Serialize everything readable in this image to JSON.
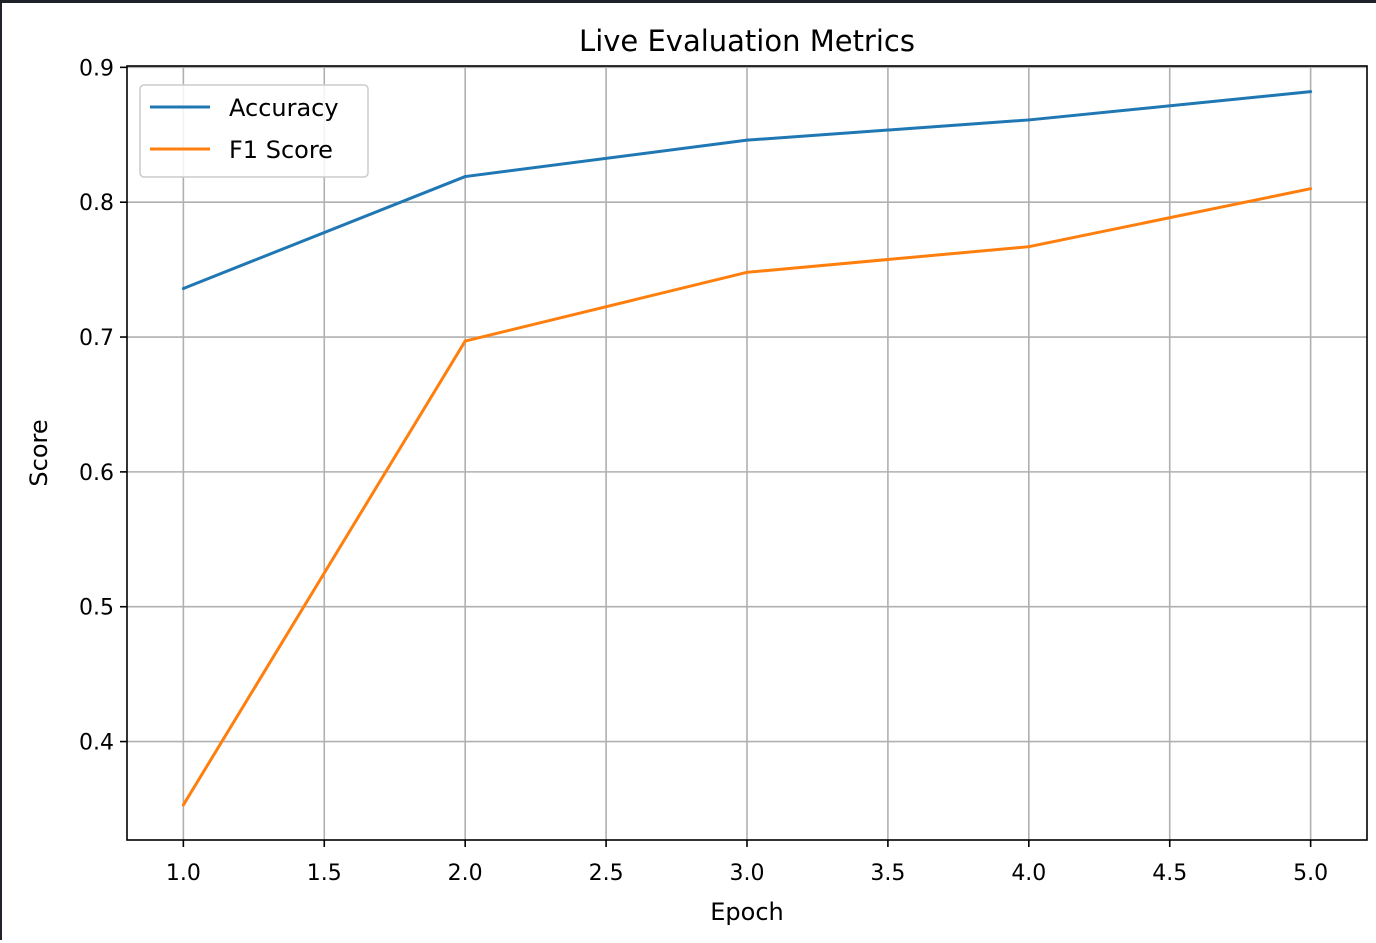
{
  "chart_data": {
    "type": "line",
    "title": "Live Evaluation Metrics",
    "xlabel": "Epoch",
    "ylabel": "Score",
    "x": [
      1,
      2,
      3,
      4,
      5
    ],
    "series": [
      {
        "name": "Accuracy",
        "color": "#1f77b4",
        "values": [
          0.736,
          0.819,
          0.846,
          0.861,
          0.882
        ]
      },
      {
        "name": "F1 Score",
        "color": "#ff7f0e",
        "values": [
          0.353,
          0.697,
          0.748,
          0.767,
          0.81
        ]
      }
    ],
    "xlim": [
      0.8,
      5.2
    ],
    "ylim": [
      0.327,
      0.901
    ],
    "xticks": [
      1.0,
      1.5,
      2.0,
      2.5,
      3.0,
      3.5,
      4.0,
      4.5,
      5.0
    ],
    "xtick_labels": [
      "1.0",
      "1.5",
      "2.0",
      "2.5",
      "3.0",
      "3.5",
      "4.0",
      "4.5",
      "5.0"
    ],
    "yticks": [
      0.4,
      0.5,
      0.6,
      0.7,
      0.8,
      0.9
    ],
    "ytick_labels": [
      "0.4",
      "0.5",
      "0.6",
      "0.7",
      "0.8",
      "0.9"
    ],
    "grid": true,
    "legend_position": "upper left"
  }
}
